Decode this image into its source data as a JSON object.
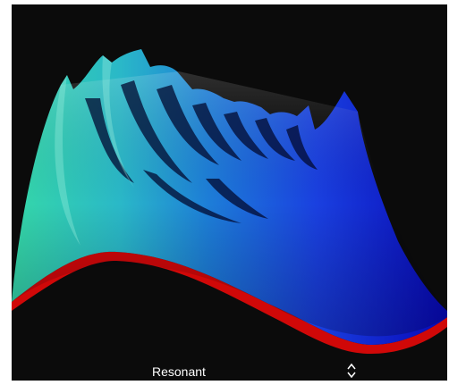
{
  "control": {
    "selected": "Resonant"
  }
}
